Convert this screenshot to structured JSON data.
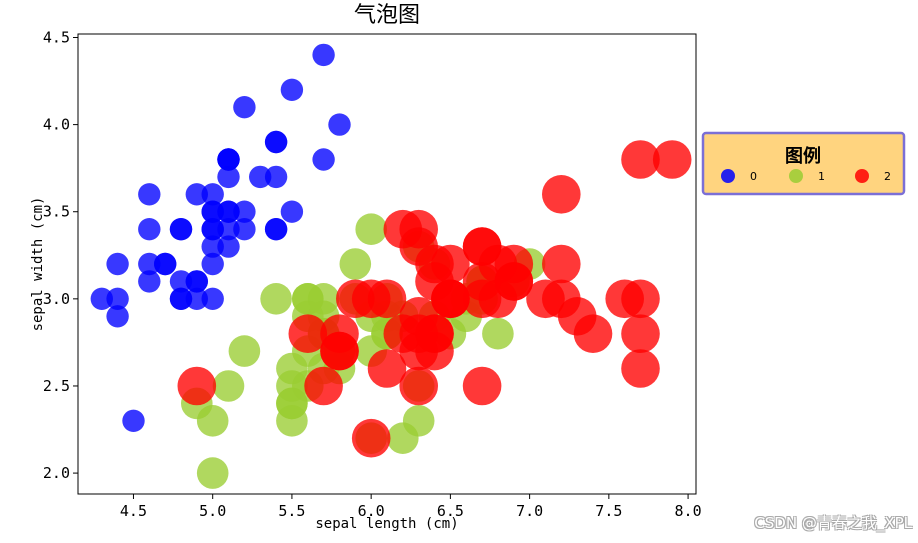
{
  "chart_data": {
    "type": "scatter",
    "title": "气泡图",
    "xlabel": "sepal length (cm)",
    "ylabel": "sepal width (cm)",
    "xlim": [
      4.15,
      8.05
    ],
    "ylim": [
      1.88,
      4.52
    ],
    "xticks": [
      "4.5",
      "5.0",
      "5.5",
      "6.0",
      "6.5",
      "7.0",
      "7.5",
      "8.0"
    ],
    "yticks": [
      "2.0",
      "2.5",
      "3.0",
      "3.5",
      "4.0",
      "4.5"
    ],
    "grid": false,
    "legend": {
      "title": "图例",
      "placement": "right-outside",
      "entries": [
        "0",
        "1",
        "2"
      ],
      "background": "#ffd47f",
      "border": "#7b6fd6"
    },
    "series": [
      {
        "name": "0",
        "color": "#0000ff",
        "points": [
          [
            5.1,
            3.5
          ],
          [
            4.9,
            3.0
          ],
          [
            4.7,
            3.2
          ],
          [
            4.6,
            3.1
          ],
          [
            5.0,
            3.6
          ],
          [
            5.4,
            3.9
          ],
          [
            4.6,
            3.4
          ],
          [
            5.0,
            3.4
          ],
          [
            4.4,
            2.9
          ],
          [
            4.9,
            3.1
          ],
          [
            5.4,
            3.7
          ],
          [
            4.8,
            3.4
          ],
          [
            4.8,
            3.0
          ],
          [
            4.3,
            3.0
          ],
          [
            5.8,
            4.0
          ],
          [
            5.7,
            4.4
          ],
          [
            5.4,
            3.9
          ],
          [
            5.1,
            3.5
          ],
          [
            5.7,
            3.8
          ],
          [
            5.1,
            3.8
          ],
          [
            5.4,
            3.4
          ],
          [
            5.1,
            3.7
          ],
          [
            4.6,
            3.6
          ],
          [
            5.1,
            3.3
          ],
          [
            4.8,
            3.4
          ],
          [
            5.0,
            3.0
          ],
          [
            5.0,
            3.4
          ],
          [
            5.2,
            3.5
          ],
          [
            5.2,
            3.4
          ],
          [
            4.7,
            3.2
          ],
          [
            4.8,
            3.1
          ],
          [
            5.4,
            3.4
          ],
          [
            5.2,
            4.1
          ],
          [
            5.5,
            4.2
          ],
          [
            4.9,
            3.1
          ],
          [
            5.0,
            3.2
          ],
          [
            5.5,
            3.5
          ],
          [
            4.9,
            3.6
          ],
          [
            4.4,
            3.0
          ],
          [
            5.1,
            3.4
          ],
          [
            5.0,
            3.5
          ],
          [
            4.5,
            2.3
          ],
          [
            4.4,
            3.2
          ],
          [
            5.0,
            3.5
          ],
          [
            5.1,
            3.8
          ],
          [
            4.8,
            3.0
          ],
          [
            5.1,
            3.8
          ],
          [
            4.6,
            3.2
          ],
          [
            5.3,
            3.7
          ],
          [
            5.0,
            3.3
          ]
        ]
      },
      {
        "name": "1",
        "color": "#9acd32",
        "points": [
          [
            7.0,
            3.2
          ],
          [
            6.4,
            3.2
          ],
          [
            6.9,
            3.1
          ],
          [
            5.5,
            2.3
          ],
          [
            6.5,
            2.8
          ],
          [
            5.7,
            2.8
          ],
          [
            6.3,
            3.3
          ],
          [
            4.9,
            2.4
          ],
          [
            6.6,
            2.9
          ],
          [
            5.2,
            2.7
          ],
          [
            5.0,
            2.0
          ],
          [
            5.9,
            3.0
          ],
          [
            6.0,
            2.2
          ],
          [
            6.1,
            2.9
          ],
          [
            5.6,
            2.9
          ],
          [
            6.7,
            3.1
          ],
          [
            5.6,
            3.0
          ],
          [
            5.8,
            2.7
          ],
          [
            6.2,
            2.2
          ],
          [
            5.6,
            2.5
          ],
          [
            5.9,
            3.2
          ],
          [
            6.1,
            2.8
          ],
          [
            6.3,
            2.5
          ],
          [
            6.1,
            2.8
          ],
          [
            6.4,
            2.9
          ],
          [
            6.6,
            3.0
          ],
          [
            6.8,
            2.8
          ],
          [
            6.7,
            3.0
          ],
          [
            6.0,
            2.9
          ],
          [
            5.7,
            2.6
          ],
          [
            5.5,
            2.4
          ],
          [
            5.5,
            2.4
          ],
          [
            5.8,
            2.7
          ],
          [
            6.0,
            2.7
          ],
          [
            5.4,
            3.0
          ],
          [
            6.0,
            3.4
          ],
          [
            6.7,
            3.1
          ],
          [
            6.3,
            2.3
          ],
          [
            5.6,
            3.0
          ],
          [
            5.5,
            2.5
          ],
          [
            5.5,
            2.6
          ],
          [
            6.1,
            3.0
          ],
          [
            5.8,
            2.6
          ],
          [
            5.0,
            2.3
          ],
          [
            5.6,
            2.7
          ],
          [
            5.7,
            3.0
          ],
          [
            5.7,
            2.9
          ],
          [
            6.2,
            2.9
          ],
          [
            5.1,
            2.5
          ],
          [
            5.7,
            2.8
          ]
        ]
      },
      {
        "name": "2",
        "color": "#ff0000",
        "points": [
          [
            6.3,
            3.3
          ],
          [
            5.8,
            2.7
          ],
          [
            7.1,
            3.0
          ],
          [
            6.3,
            2.9
          ],
          [
            6.5,
            3.0
          ],
          [
            7.6,
            3.0
          ],
          [
            4.9,
            2.5
          ],
          [
            7.3,
            2.9
          ],
          [
            6.7,
            2.5
          ],
          [
            7.2,
            3.6
          ],
          [
            6.5,
            3.2
          ],
          [
            6.4,
            2.7
          ],
          [
            6.8,
            3.0
          ],
          [
            5.7,
            2.5
          ],
          [
            5.8,
            2.8
          ],
          [
            6.4,
            3.2
          ],
          [
            6.5,
            3.0
          ],
          [
            7.7,
            3.8
          ],
          [
            7.7,
            2.6
          ],
          [
            6.0,
            2.2
          ],
          [
            6.9,
            3.2
          ],
          [
            5.6,
            2.8
          ],
          [
            7.7,
            2.8
          ],
          [
            6.3,
            2.7
          ],
          [
            6.7,
            3.3
          ],
          [
            7.2,
            3.2
          ],
          [
            6.2,
            2.8
          ],
          [
            6.1,
            3.0
          ],
          [
            6.4,
            2.8
          ],
          [
            7.2,
            3.0
          ],
          [
            7.4,
            2.8
          ],
          [
            7.9,
            3.8
          ],
          [
            6.4,
            2.8
          ],
          [
            6.3,
            2.8
          ],
          [
            6.1,
            2.6
          ],
          [
            7.7,
            3.0
          ],
          [
            6.3,
            3.4
          ],
          [
            6.4,
            3.1
          ],
          [
            6.0,
            3.0
          ],
          [
            6.9,
            3.1
          ],
          [
            6.7,
            3.1
          ],
          [
            6.9,
            3.1
          ],
          [
            5.8,
            2.7
          ],
          [
            6.8,
            3.2
          ],
          [
            6.7,
            3.3
          ],
          [
            6.7,
            3.0
          ],
          [
            6.3,
            2.5
          ],
          [
            6.5,
            3.0
          ],
          [
            6.2,
            3.4
          ],
          [
            5.9,
            3.0
          ]
        ]
      }
    ],
    "marker_size_by_series": [
      1,
      2,
      3
    ]
  },
  "watermark": "CSDN @青春之我_XPL"
}
